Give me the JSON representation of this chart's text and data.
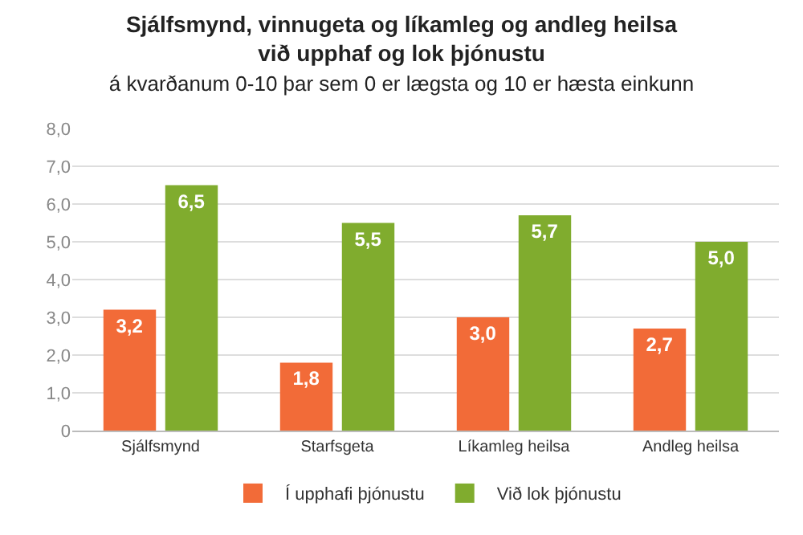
{
  "chart_data": {
    "type": "bar",
    "title": "Sjálfsmynd, vinnugeta og líkamleg og andleg heilsa\nvið upphaf og lok þjónustu",
    "subtitle": "á kvarðanum 0-10 þar sem 0 er lægsta og 10 er hæsta einkunn",
    "categories": [
      "Sjálfsmynd",
      "Starfsgeta",
      "Líkamleg heilsa",
      "Andleg heilsa"
    ],
    "series": [
      {
        "name": "Í upphafi þjónustu",
        "color": "#f26b38",
        "values": [
          3.2,
          1.8,
          3.0,
          2.7
        ],
        "value_labels": [
          "3,2",
          "1,8",
          "3,0",
          "2,7"
        ]
      },
      {
        "name": "Við lok þjónustu",
        "color": "#80ac2e",
        "values": [
          6.5,
          5.5,
          5.7,
          5.0
        ],
        "value_labels": [
          "6,5",
          "5,5",
          "5,7",
          "5,0"
        ]
      }
    ],
    "ylim": [
      0,
      8
    ],
    "yticks": [
      {
        "value": 0,
        "label": "0"
      },
      {
        "value": 1,
        "label": "1,0"
      },
      {
        "value": 2,
        "label": "2,0"
      },
      {
        "value": 3,
        "label": "3,0"
      },
      {
        "value": 4,
        "label": "4,0"
      },
      {
        "value": 5,
        "label": "5,0"
      },
      {
        "value": 6,
        "label": "6,0"
      },
      {
        "value": 7,
        "label": "7,0"
      },
      {
        "value": 8,
        "label": "8,0"
      }
    ],
    "grid": "y",
    "legend": "bottom"
  }
}
